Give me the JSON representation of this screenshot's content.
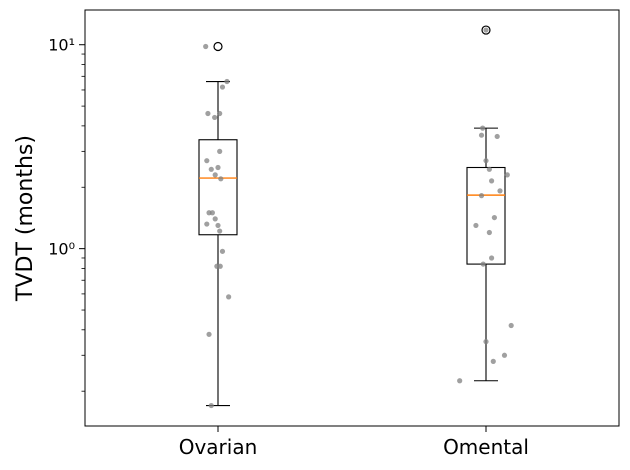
{
  "chart_data": {
    "type": "box",
    "title": "",
    "xlabel": "",
    "ylabel": "TVDT (months)",
    "yscale": "log",
    "ylim": [
      0.135,
      14.8
    ],
    "yticks": [
      {
        "value": 1,
        "label": "10⁰"
      },
      {
        "value": 10,
        "label": "10¹"
      }
    ],
    "grid": false,
    "categories": [
      "Ovarian",
      "Omental"
    ],
    "boxes": [
      {
        "name": "Ovarian",
        "whisker_low": 0.17,
        "q1": 1.17,
        "median": 2.22,
        "q3": 3.42,
        "whisker_high": 6.6,
        "fliers": [
          9.8
        ],
        "points": [
          {
            "y": 9.8,
            "jitter": -0.22
          },
          {
            "y": 6.6,
            "jitter": 0.16
          },
          {
            "y": 6.2,
            "jitter": 0.08
          },
          {
            "y": 4.6,
            "jitter": -0.18
          },
          {
            "y": 4.6,
            "jitter": 0.03
          },
          {
            "y": 4.4,
            "jitter": -0.06
          },
          {
            "y": 3.0,
            "jitter": 0.03
          },
          {
            "y": 2.7,
            "jitter": -0.2
          },
          {
            "y": 2.45,
            "jitter": -0.12
          },
          {
            "y": 2.5,
            "jitter": 0.0
          },
          {
            "y": 2.3,
            "jitter": -0.05
          },
          {
            "y": 2.2,
            "jitter": 0.05
          },
          {
            "y": 1.5,
            "jitter": -0.16
          },
          {
            "y": 1.5,
            "jitter": -0.1
          },
          {
            "y": 1.4,
            "jitter": -0.05
          },
          {
            "y": 1.32,
            "jitter": -0.2
          },
          {
            "y": 1.3,
            "jitter": 0.0
          },
          {
            "y": 1.22,
            "jitter": 0.03
          },
          {
            "y": 0.97,
            "jitter": 0.08
          },
          {
            "y": 0.82,
            "jitter": -0.02
          },
          {
            "y": 0.82,
            "jitter": 0.04
          },
          {
            "y": 0.58,
            "jitter": 0.19
          },
          {
            "y": 0.38,
            "jitter": -0.16
          },
          {
            "y": 0.17,
            "jitter": -0.12
          }
        ]
      },
      {
        "name": "Omental",
        "whisker_low": 0.225,
        "q1": 0.84,
        "median": 1.83,
        "q3": 2.5,
        "whisker_high": 3.9,
        "fliers": [
          11.8
        ],
        "points": [
          {
            "y": 11.8,
            "jitter": 0.0
          },
          {
            "y": 3.9,
            "jitter": -0.06
          },
          {
            "y": 3.6,
            "jitter": -0.08
          },
          {
            "y": 3.55,
            "jitter": 0.2
          },
          {
            "y": 2.7,
            "jitter": 0.0
          },
          {
            "y": 2.45,
            "jitter": 0.06
          },
          {
            "y": 2.3,
            "jitter": 0.38
          },
          {
            "y": 2.15,
            "jitter": 0.1
          },
          {
            "y": 1.92,
            "jitter": 0.25
          },
          {
            "y": 1.82,
            "jitter": -0.08
          },
          {
            "y": 1.42,
            "jitter": 0.15
          },
          {
            "y": 1.3,
            "jitter": -0.18
          },
          {
            "y": 1.2,
            "jitter": 0.06
          },
          {
            "y": 0.9,
            "jitter": 0.1
          },
          {
            "y": 0.84,
            "jitter": -0.05
          },
          {
            "y": 0.42,
            "jitter": 0.45
          },
          {
            "y": 0.35,
            "jitter": 0.0
          },
          {
            "y": 0.3,
            "jitter": 0.33
          },
          {
            "y": 0.28,
            "jitter": 0.13
          },
          {
            "y": 0.225,
            "jitter": -0.47
          }
        ]
      }
    ],
    "colors": {
      "box": "#000000",
      "median": "#ff7f0e",
      "points": "#808080",
      "flier_edge": "#000000"
    }
  }
}
